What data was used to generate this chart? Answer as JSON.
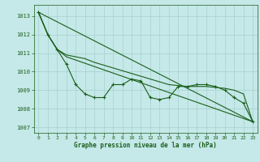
{
  "title": "Graphe pression niveau de la mer (hPa)",
  "background_color": "#c5e8e8",
  "grid_color": "#a8d0d0",
  "line_color": "#1a5f1a",
  "xlim": [
    -0.5,
    23.5
  ],
  "ylim": [
    1006.7,
    1013.6
  ],
  "yticks": [
    1007,
    1008,
    1009,
    1010,
    1011,
    1012,
    1013
  ],
  "xticks": [
    0,
    1,
    2,
    3,
    4,
    5,
    6,
    7,
    8,
    9,
    10,
    11,
    12,
    13,
    14,
    15,
    16,
    17,
    18,
    19,
    20,
    21,
    22,
    23
  ],
  "series_smooth": {
    "x": [
      0,
      1,
      2,
      3,
      23
    ],
    "y": [
      1013.2,
      1012.0,
      1011.2,
      1010.8,
      1007.3
    ]
  },
  "series_trend": {
    "x": [
      0,
      23
    ],
    "y": [
      1013.2,
      1007.3
    ]
  },
  "series_markers": {
    "x": [
      0,
      1,
      2,
      3,
      4,
      5,
      6,
      7,
      8,
      9,
      10,
      11,
      12,
      13,
      14,
      15,
      16,
      17,
      18,
      19,
      20,
      21,
      22,
      23
    ],
    "y": [
      1013.2,
      1012.0,
      1011.2,
      1010.4,
      1009.3,
      1008.8,
      1008.6,
      1008.6,
      1009.3,
      1009.3,
      1009.6,
      1009.5,
      1008.6,
      1008.5,
      1008.6,
      1009.2,
      1009.2,
      1009.3,
      1009.3,
      1009.2,
      1009.0,
      1008.6,
      1008.3,
      1007.3
    ]
  },
  "series_line2": {
    "x": [
      0,
      1,
      2,
      3,
      4,
      5,
      6,
      7,
      8,
      9,
      10,
      11,
      12,
      13,
      14,
      15,
      16,
      17,
      18,
      19,
      20,
      21,
      22,
      23
    ],
    "y": [
      1013.2,
      1012.0,
      1011.2,
      1010.9,
      1010.8,
      1010.7,
      1010.5,
      1010.35,
      1010.2,
      1010.05,
      1009.9,
      1009.75,
      1009.6,
      1009.45,
      1009.3,
      1009.25,
      1009.2,
      1009.2,
      1009.2,
      1009.15,
      1009.1,
      1009.0,
      1008.8,
      1007.3
    ]
  }
}
